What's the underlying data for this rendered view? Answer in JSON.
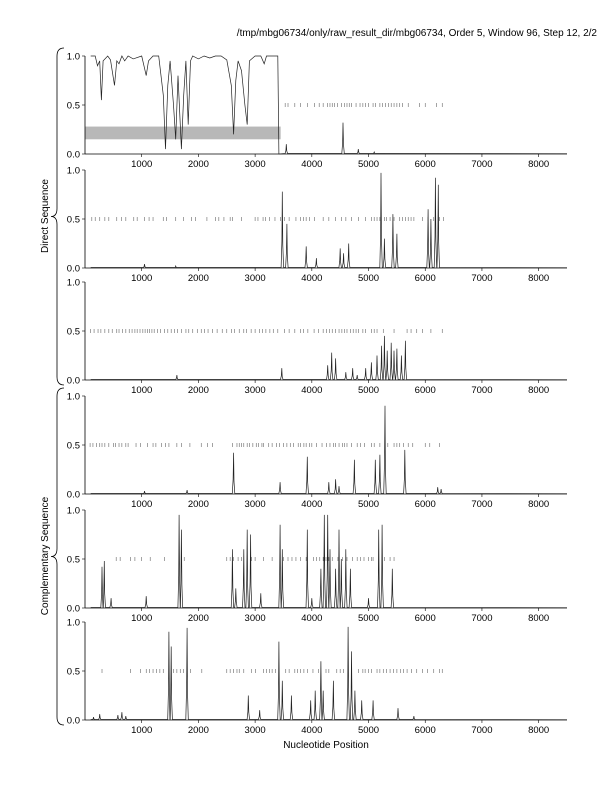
{
  "header": "/tmp/mbg06734/only/raw_result_dir/mbg06734, Order 5, Window 96, Step 12, 2/2",
  "xlabel": "Nucleotide Position",
  "group_labels": [
    "Direct Sequence",
    "Complementary Sequence"
  ],
  "xticks": [
    1000,
    2000,
    3000,
    4000,
    5000,
    6000,
    7000,
    8000
  ],
  "yticks": [
    "0.0",
    "0.5",
    "1.0"
  ],
  "chart_data": [
    {
      "type": "line",
      "panel": 1,
      "group": "Direct Sequence",
      "xlim": [
        0,
        8500
      ],
      "ylim": [
        0,
        1
      ],
      "segment": [
        [
          100,
          1.0
        ],
        [
          180,
          1.0
        ],
        [
          220,
          0.9
        ],
        [
          260,
          0.95
        ],
        [
          290,
          0.55
        ],
        [
          320,
          0.95
        ],
        [
          400,
          1.0
        ],
        [
          450,
          0.96
        ],
        [
          520,
          0.7
        ],
        [
          560,
          0.95
        ],
        [
          600,
          0.92
        ],
        [
          650,
          1.0
        ],
        [
          700,
          0.95
        ],
        [
          760,
          1.0
        ],
        [
          850,
          0.97
        ],
        [
          1000,
          1.0
        ],
        [
          1080,
          0.8
        ],
        [
          1120,
          0.95
        ],
        [
          1200,
          1.0
        ],
        [
          1300,
          1.0
        ],
        [
          1380,
          0.6
        ],
        [
          1420,
          0.05
        ],
        [
          1460,
          0.7
        ],
        [
          1500,
          0.95
        ],
        [
          1560,
          0.5
        ],
        [
          1600,
          0.15
        ],
        [
          1640,
          0.8
        ],
        [
          1700,
          0.05
        ],
        [
          1740,
          0.6
        ],
        [
          1780,
          0.95
        ],
        [
          1820,
          0.3
        ],
        [
          1860,
          0.95
        ],
        [
          1900,
          1.0
        ],
        [
          2000,
          0.97
        ],
        [
          2100,
          1.0
        ],
        [
          2200,
          0.98
        ],
        [
          2300,
          1.0
        ],
        [
          2400,
          1.0
        ],
        [
          2500,
          0.96
        ],
        [
          2580,
          0.7
        ],
        [
          2620,
          0.2
        ],
        [
          2660,
          0.75
        ],
        [
          2700,
          0.95
        ],
        [
          2760,
          0.85
        ],
        [
          2820,
          0.5
        ],
        [
          2860,
          0.3
        ],
        [
          2900,
          0.95
        ],
        [
          3000,
          1.0
        ],
        [
          3100,
          1.0
        ],
        [
          3160,
          0.92
        ],
        [
          3200,
          1.0
        ],
        [
          3300,
          1.0
        ],
        [
          3400,
          1.0
        ]
      ],
      "peaks": [
        [
          3550,
          0.1
        ],
        [
          4550,
          0.32
        ],
        [
          4820,
          0.05
        ],
        [
          5100,
          0.02
        ]
      ],
      "marks_y": 0.5,
      "marks": [
        3530,
        3580,
        3700,
        3800,
        3920,
        4050,
        4130,
        4200,
        4280,
        4320,
        4360,
        4400,
        4450,
        4520,
        4580,
        4620,
        4660,
        4700,
        4780,
        4850,
        4900,
        4950,
        5000,
        5080,
        5120,
        5200,
        5250,
        5300,
        5350,
        5400,
        5450,
        5500,
        5550,
        5600,
        5700,
        5900,
        6000,
        6200,
        6300
      ]
    },
    {
      "type": "line",
      "panel": 2,
      "group": "Direct Sequence",
      "xlim": [
        0,
        8500
      ],
      "ylim": [
        0,
        1
      ],
      "peaks": [
        [
          1050,
          0.04
        ],
        [
          1600,
          0.02
        ],
        [
          3480,
          0.78
        ],
        [
          3560,
          0.45
        ],
        [
          3900,
          0.22
        ],
        [
          4080,
          0.1
        ],
        [
          4500,
          0.2
        ],
        [
          4560,
          0.15
        ],
        [
          4650,
          0.25
        ],
        [
          5220,
          0.97
        ],
        [
          5280,
          0.3
        ],
        [
          5430,
          0.55
        ],
        [
          5500,
          0.35
        ],
        [
          6050,
          0.6
        ],
        [
          6100,
          0.5
        ],
        [
          6180,
          0.92
        ],
        [
          6230,
          0.85
        ]
      ],
      "marks_y": 0.5,
      "marks": [
        120,
        180,
        260,
        350,
        420,
        560,
        640,
        720,
        860,
        920,
        1050,
        1130,
        1200,
        1380,
        1440,
        1600,
        1740,
        1880,
        1950,
        2150,
        2300,
        2360,
        2450,
        2560,
        2600,
        2760,
        3000,
        3050,
        3140,
        3180,
        3250,
        3350,
        3450,
        3520,
        3600,
        3720,
        3800,
        3850,
        3900,
        3960,
        4050,
        4200,
        4300,
        4420,
        4520,
        4600,
        4700,
        4820,
        4950,
        5050,
        5100,
        5150,
        5200,
        5280,
        5320,
        5380,
        5450,
        5550,
        5600,
        5650,
        5700,
        5750,
        5800,
        5950,
        6050,
        6150,
        6250,
        6320
      ]
    },
    {
      "type": "line",
      "panel": 3,
      "group": "Direct Sequence",
      "xlim": [
        0,
        8500
      ],
      "ylim": [
        0,
        1
      ],
      "peaks": [
        [
          1620,
          0.05
        ],
        [
          3470,
          0.12
        ],
        [
          4280,
          0.15
        ],
        [
          4350,
          0.28
        ],
        [
          4420,
          0.22
        ],
        [
          4600,
          0.08
        ],
        [
          4720,
          0.12
        ],
        [
          4800,
          0.05
        ],
        [
          4950,
          0.12
        ],
        [
          5050,
          0.18
        ],
        [
          5150,
          0.25
        ],
        [
          5230,
          0.35
        ],
        [
          5280,
          0.45
        ],
        [
          5330,
          0.3
        ],
        [
          5400,
          0.38
        ],
        [
          5450,
          0.3
        ],
        [
          5500,
          0.32
        ],
        [
          5580,
          0.25
        ],
        [
          5650,
          0.4
        ]
      ],
      "marks_y": 0.5,
      "marks": [
        100,
        160,
        230,
        280,
        350,
        420,
        480,
        560,
        600,
        660,
        720,
        780,
        830,
        880,
        920,
        970,
        1020,
        1060,
        1100,
        1140,
        1180,
        1220,
        1280,
        1330,
        1400,
        1460,
        1520,
        1580,
        1630,
        1700,
        1780,
        1830,
        1900,
        1980,
        2050,
        2110,
        2170,
        2250,
        2330,
        2420,
        2500,
        2580,
        2640,
        2720,
        2800,
        2850,
        2930,
        3000,
        3080,
        3130,
        3190,
        3260,
        3320,
        3400,
        3520,
        3600,
        3700,
        3800,
        3850,
        3930,
        4040,
        4120,
        4200,
        4260,
        4310,
        4360,
        4420,
        4480,
        4530,
        4580,
        4620,
        4680,
        4730,
        4780,
        4820,
        4900,
        4950,
        5050,
        5100,
        5150,
        5260,
        5450,
        5680,
        5750,
        5850,
        5950,
        6100,
        6300
      ]
    },
    {
      "type": "line",
      "panel": 4,
      "group": "Complementary Sequence",
      "xlim": [
        0,
        8500
      ],
      "ylim": [
        0,
        1
      ],
      "peaks": [
        [
          1050,
          0.03
        ],
        [
          1800,
          0.04
        ],
        [
          2620,
          0.42
        ],
        [
          3440,
          0.12
        ],
        [
          3920,
          0.38
        ],
        [
          4300,
          0.12
        ],
        [
          4420,
          0.15
        ],
        [
          4480,
          0.08
        ],
        [
          4750,
          0.35
        ],
        [
          5120,
          0.35
        ],
        [
          5200,
          0.4
        ],
        [
          5290,
          0.9
        ],
        [
          5640,
          0.45
        ],
        [
          6220,
          0.07
        ],
        [
          6280,
          0.05
        ]
      ],
      "marks_y": 0.5,
      "marks": [
        90,
        140,
        200,
        260,
        300,
        350,
        420,
        500,
        540,
        600,
        650,
        720,
        760,
        900,
        980,
        1100,
        1200,
        1250,
        1350,
        1420,
        1480,
        1620,
        1700,
        1850,
        2050,
        2160,
        2250,
        2600,
        2680,
        2720,
        2760,
        2800,
        2860,
        2900,
        2960,
        3020,
        3060,
        3120,
        3150,
        3240,
        3300,
        3380,
        3430,
        3500,
        3560,
        3620,
        3680,
        3760,
        3800,
        3860,
        3900,
        3960,
        4000,
        4080,
        4180,
        4260,
        4320,
        4380,
        4420,
        4480,
        4540,
        4580,
        4620,
        4700,
        4800,
        4860,
        4930,
        5050,
        5100,
        5200,
        5340,
        5450,
        5500,
        5550,
        5620,
        5700,
        5780,
        6000,
        6080,
        6250
      ]
    },
    {
      "type": "line",
      "panel": 5,
      "group": "Complementary Sequence",
      "xlim": [
        0,
        8500
      ],
      "ylim": [
        0,
        1
      ],
      "peaks": [
        [
          300,
          0.42
        ],
        [
          340,
          0.48
        ],
        [
          460,
          0.1
        ],
        [
          1080,
          0.12
        ],
        [
          1660,
          0.95
        ],
        [
          1700,
          0.8
        ],
        [
          2600,
          0.6
        ],
        [
          2660,
          0.2
        ],
        [
          2800,
          0.6
        ],
        [
          2860,
          0.8
        ],
        [
          2920,
          0.75
        ],
        [
          3100,
          0.15
        ],
        [
          3440,
          0.85
        ],
        [
          3480,
          0.6
        ],
        [
          3920,
          0.8
        ],
        [
          4000,
          0.1
        ],
        [
          4160,
          0.4
        ],
        [
          4220,
          0.95
        ],
        [
          4280,
          0.95
        ],
        [
          4320,
          0.6
        ],
        [
          4420,
          0.4
        ],
        [
          4480,
          0.8
        ],
        [
          4520,
          0.5
        ],
        [
          4600,
          0.6
        ],
        [
          4680,
          0.4
        ],
        [
          5000,
          0.1
        ],
        [
          5180,
          0.8
        ],
        [
          5240,
          0.85
        ],
        [
          5420,
          0.4
        ]
      ],
      "marks_y": 0.5,
      "marks": [
        550,
        620,
        800,
        880,
        1000,
        1150,
        1400,
        1750,
        2500,
        2560,
        2620,
        2700,
        2760,
        2940,
        3000,
        3150,
        3300,
        3500,
        3580,
        3650,
        3720,
        3800,
        3900,
        4030,
        4080,
        4140,
        4200,
        4250,
        4300,
        4360,
        4460,
        4540,
        4620,
        4720,
        4800,
        4860,
        4920,
        5000,
        5050,
        5080,
        5280,
        5380,
        5450
      ]
    },
    {
      "type": "line",
      "panel": 6,
      "group": "Complementary Sequence",
      "xlim": [
        0,
        8500
      ],
      "ylim": [
        0,
        1
      ],
      "peaks": [
        [
          150,
          0.03
        ],
        [
          260,
          0.06
        ],
        [
          580,
          0.05
        ],
        [
          650,
          0.08
        ],
        [
          720,
          0.04
        ],
        [
          1480,
          0.9
        ],
        [
          1520,
          0.75
        ],
        [
          1800,
          0.94
        ],
        [
          2880,
          0.25
        ],
        [
          3080,
          0.1
        ],
        [
          3420,
          0.8
        ],
        [
          3480,
          0.4
        ],
        [
          3640,
          0.25
        ],
        [
          3980,
          0.2
        ],
        [
          4060,
          0.3
        ],
        [
          4160,
          0.6
        ],
        [
          4200,
          0.3
        ],
        [
          4380,
          0.4
        ],
        [
          4640,
          0.95
        ],
        [
          4700,
          0.7
        ],
        [
          4760,
          0.3
        ],
        [
          4880,
          0.2
        ],
        [
          5080,
          0.2
        ],
        [
          5520,
          0.12
        ],
        [
          5800,
          0.04
        ]
      ],
      "marks_y": 0.5,
      "marks": [
        300,
        800,
        980,
        1080,
        1140,
        1200,
        1260,
        1320,
        1380,
        1560,
        1620,
        1680,
        1740,
        1860,
        2060,
        2500,
        2560,
        2620,
        2680,
        2720,
        2800,
        2940,
        3010,
        3150,
        3200,
        3250,
        3300,
        3360,
        3540,
        3600,
        3700,
        3750,
        3800,
        3860,
        3920,
        4020,
        4120,
        4250,
        4300,
        4440,
        4500,
        4560,
        4820,
        4900,
        4940,
        5000,
        5050,
        5150,
        5200,
        5260,
        5320,
        5380,
        5440,
        5500,
        5560,
        5620,
        5680,
        5760,
        5850,
        5950,
        6040,
        6150,
        6250,
        6300
      ]
    }
  ]
}
